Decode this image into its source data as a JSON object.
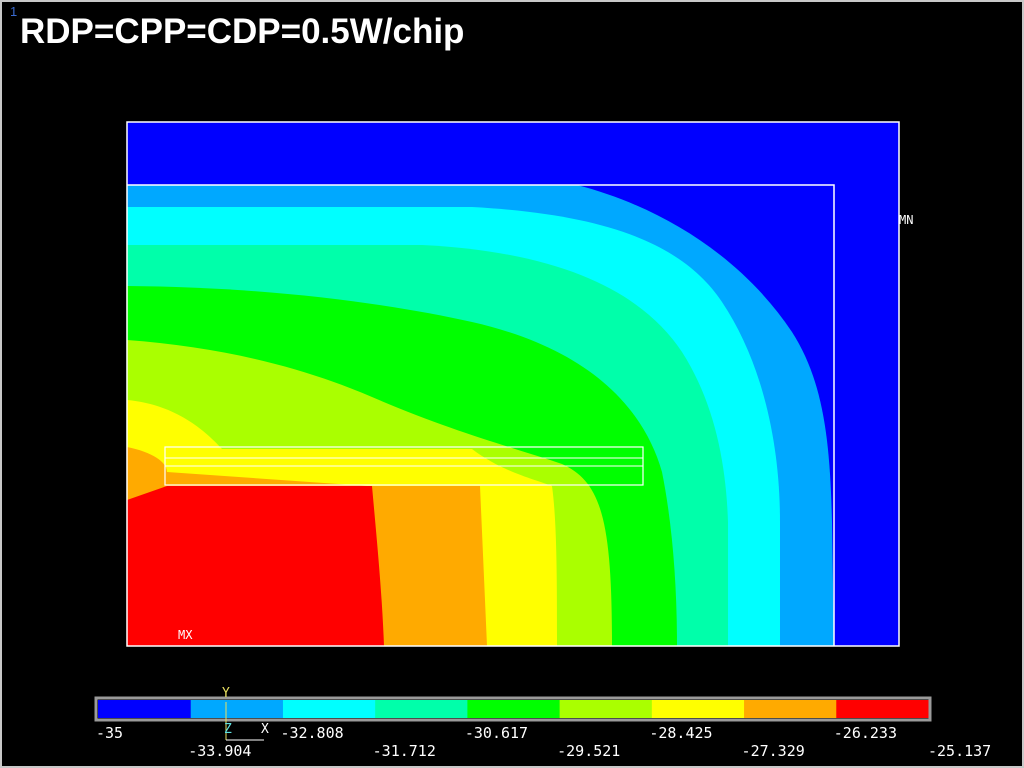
{
  "window": {
    "number": "1",
    "title": "RDP=CPP=CDP=0.5W/chip"
  },
  "plot": {
    "min_marker": "MN",
    "max_marker": "MX",
    "triad": {
      "y": "Y",
      "z": "Z",
      "x": "X"
    }
  },
  "legend": {
    "bands": [
      {
        "color": "#0000ff"
      },
      {
        "color": "#00a8ff"
      },
      {
        "color": "#00ffff"
      },
      {
        "color": "#00ffaa"
      },
      {
        "color": "#00ff00"
      },
      {
        "color": "#aaff00"
      },
      {
        "color": "#ffff00"
      },
      {
        "color": "#ffaa00"
      },
      {
        "color": "#ff0000"
      }
    ],
    "labels_top": [
      "-35",
      "-32.808",
      "-30.617",
      "-28.425",
      "-26.233"
    ],
    "labels_bottom": [
      "-33.904",
      "-31.712",
      "-29.521",
      "-27.329",
      "-25.137"
    ]
  }
}
